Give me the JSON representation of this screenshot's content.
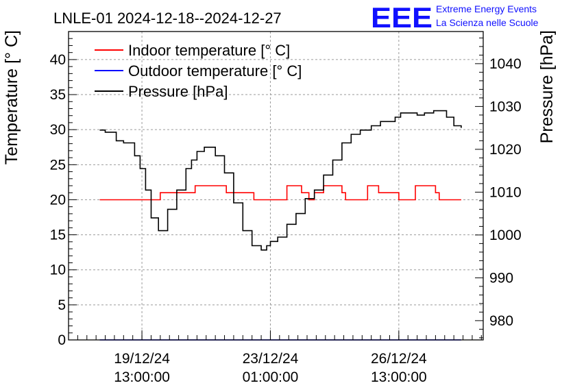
{
  "chart_data": {
    "type": "line",
    "title": "LNLE-01 2024-12-18--2024-12-27",
    "logo": {
      "mark": "EEE",
      "line1": "Extreme Energy Events",
      "line2": "La Scienza nelle Scuole"
    },
    "ylabel_left": "Temperature [° C]",
    "ylabel_right": "Pressure [hPa]",
    "ylim_left": [
      0,
      44
    ],
    "ylim_right": [
      975.5,
      1047.5
    ],
    "xlim": [
      -1.5,
      9.8
    ],
    "yticks_left": [
      0,
      5,
      10,
      15,
      20,
      25,
      30,
      35,
      40
    ],
    "yticks_right": [
      980,
      990,
      1000,
      1010,
      1020,
      1030,
      1040
    ],
    "xticks": [
      {
        "x": 0.5,
        "date": "19/12/24",
        "time": "13:00:00"
      },
      {
        "x": 4.0,
        "date": "23/12/24",
        "time": "01:00:00"
      },
      {
        "x": 7.5,
        "date": "26/12/24",
        "time": "13:00:00"
      }
    ],
    "grid": true,
    "legend_position": "top-left",
    "colors": {
      "indoor": "#ff0000",
      "outdoor": "#0000ff",
      "pressure": "#000000"
    },
    "series": [
      {
        "name": "Indoor temperature [° C]",
        "axis": "left",
        "x": [
          -0.65,
          0.0,
          0.95,
          1.0,
          1.2,
          1.8,
          1.95,
          2.8,
          2.95,
          3.4,
          3.55,
          3.9,
          4.3,
          4.45,
          4.85,
          5.05,
          5.2,
          5.45,
          5.95,
          6.05,
          6.45,
          6.65,
          6.95,
          7.5,
          7.6,
          7.95,
          8.5,
          8.6,
          8.8,
          9.2
        ],
        "y": [
          20,
          20,
          20,
          21,
          21,
          21,
          22,
          21,
          21,
          21,
          20,
          20,
          20,
          22,
          21,
          20,
          21,
          22,
          21,
          20,
          20,
          22,
          21,
          20,
          20,
          22,
          21,
          20,
          20,
          20
        ]
      },
      {
        "name": "Outdoor temperature [° C]",
        "axis": "left",
        "x": [
          -0.65,
          9.2
        ],
        "y": [
          0,
          0
        ]
      },
      {
        "name": "Pressure [hPa]",
        "axis": "right",
        "x": [
          -0.65,
          -0.5,
          -0.2,
          0.0,
          0.3,
          0.45,
          0.6,
          0.75,
          0.95,
          1.2,
          1.45,
          1.7,
          1.85,
          2.0,
          2.2,
          2.5,
          2.75,
          3.0,
          3.25,
          3.5,
          3.75,
          3.9,
          4.0,
          4.2,
          4.45,
          4.7,
          4.95,
          5.2,
          5.45,
          5.7,
          5.95,
          6.2,
          6.45,
          6.75,
          7.0,
          7.2,
          7.4,
          7.55,
          7.75,
          8.0,
          8.2,
          8.45,
          8.65,
          8.8,
          9.0,
          9.2
        ],
        "y": [
          1024.5,
          1024,
          1022,
          1021.5,
          1018.5,
          1015.5,
          1010.5,
          1004,
          1001,
          1006,
          1010.5,
          1015.5,
          1017.5,
          1019.5,
          1020.5,
          1018.5,
          1014.5,
          1007.5,
          1001,
          997.5,
          996.5,
          997.5,
          998.5,
          999.5,
          1002.5,
          1005,
          1008.5,
          1010.5,
          1014,
          1017.5,
          1021.5,
          1023.5,
          1024.5,
          1025.5,
          1026.5,
          1026.5,
          1027.5,
          1028.5,
          1028.5,
          1028,
          1028.5,
          1029,
          1029,
          1027.5,
          1025.5,
          1025
        ]
      }
    ]
  }
}
